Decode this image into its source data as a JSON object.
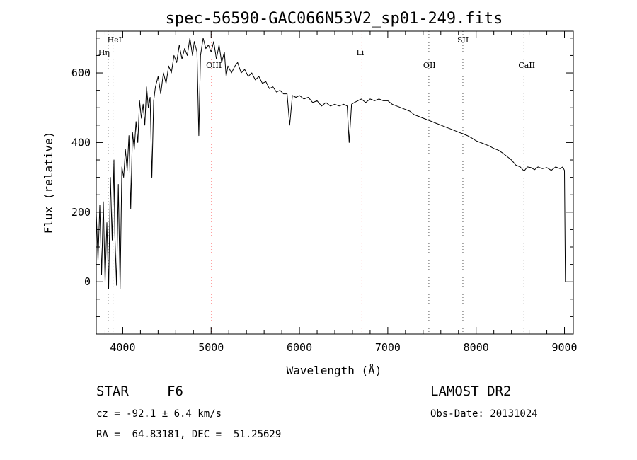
{
  "chart_data": {
    "type": "line",
    "title": "spec-56590-GAC066N53V2_sp01-249.fits",
    "xlabel": "Wavelength (Å)",
    "ylabel": "Flux (relative)",
    "xlim": [
      3700,
      9100
    ],
    "ylim": [
      -150,
      720
    ],
    "xticks": [
      4000,
      5000,
      6000,
      7000,
      8000,
      9000
    ],
    "yticks": [
      0,
      200,
      400,
      600
    ],
    "grid": false,
    "spectral_lines": [
      {
        "label": "HeI",
        "x": 3889,
        "color": "#555555"
      },
      {
        "label": "Hη",
        "x": 3835,
        "color": "#555555"
      },
      {
        "label": "OIII",
        "x": 5007,
        "color": "#ff0000"
      },
      {
        "label": "Li",
        "x": 6708,
        "color": "#ff0000"
      },
      {
        "label": "OII",
        "x": 7465,
        "color": "#555555"
      },
      {
        "label": "SII",
        "x": 7850,
        "color": "#555555"
      },
      {
        "label": "CaII",
        "x": 8542,
        "color": "#555555"
      }
    ],
    "series": [
      {
        "values": [
          [
            3700,
            200
          ],
          [
            3720,
            60
          ],
          [
            3740,
            220
          ],
          [
            3760,
            20
          ],
          [
            3780,
            230
          ],
          [
            3800,
            0
          ],
          [
            3820,
            170
          ],
          [
            3840,
            -20
          ],
          [
            3860,
            300
          ],
          [
            3880,
            120
          ],
          [
            3900,
            350
          ],
          [
            3910,
            140
          ],
          [
            3930,
            -10
          ],
          [
            3950,
            280
          ],
          [
            3970,
            -20
          ],
          [
            3990,
            330
          ],
          [
            4010,
            300
          ],
          [
            4030,
            380
          ],
          [
            4050,
            320
          ],
          [
            4070,
            420
          ],
          [
            4090,
            210
          ],
          [
            4110,
            430
          ],
          [
            4130,
            380
          ],
          [
            4150,
            460
          ],
          [
            4170,
            400
          ],
          [
            4190,
            520
          ],
          [
            4210,
            470
          ],
          [
            4230,
            510
          ],
          [
            4250,
            450
          ],
          [
            4270,
            560
          ],
          [
            4290,
            500
          ],
          [
            4310,
            530
          ],
          [
            4330,
            300
          ],
          [
            4350,
            520
          ],
          [
            4370,
            560
          ],
          [
            4400,
            590
          ],
          [
            4430,
            540
          ],
          [
            4460,
            600
          ],
          [
            4490,
            570
          ],
          [
            4520,
            620
          ],
          [
            4550,
            600
          ],
          [
            4580,
            650
          ],
          [
            4610,
            630
          ],
          [
            4640,
            680
          ],
          [
            4670,
            640
          ],
          [
            4700,
            670
          ],
          [
            4730,
            650
          ],
          [
            4760,
            700
          ],
          [
            4790,
            650
          ],
          [
            4810,
            690
          ],
          [
            4840,
            660
          ],
          [
            4861,
            420
          ],
          [
            4880,
            650
          ],
          [
            4910,
            700
          ],
          [
            4940,
            670
          ],
          [
            4970,
            680
          ],
          [
            5000,
            660
          ],
          [
            5030,
            690
          ],
          [
            5060,
            640
          ],
          [
            5090,
            680
          ],
          [
            5120,
            630
          ],
          [
            5150,
            660
          ],
          [
            5170,
            590
          ],
          [
            5190,
            620
          ],
          [
            5230,
            600
          ],
          [
            5270,
            620
          ],
          [
            5300,
            630
          ],
          [
            5340,
            600
          ],
          [
            5380,
            610
          ],
          [
            5420,
            590
          ],
          [
            5460,
            600
          ],
          [
            5500,
            580
          ],
          [
            5540,
            590
          ],
          [
            5580,
            570
          ],
          [
            5620,
            575
          ],
          [
            5660,
            555
          ],
          [
            5700,
            560
          ],
          [
            5740,
            545
          ],
          [
            5780,
            550
          ],
          [
            5820,
            540
          ],
          [
            5860,
            540
          ],
          [
            5890,
            450
          ],
          [
            5920,
            535
          ],
          [
            5960,
            530
          ],
          [
            6000,
            535
          ],
          [
            6050,
            525
          ],
          [
            6100,
            530
          ],
          [
            6150,
            515
          ],
          [
            6200,
            520
          ],
          [
            6250,
            505
          ],
          [
            6300,
            515
          ],
          [
            6350,
            505
          ],
          [
            6400,
            510
          ],
          [
            6450,
            505
          ],
          [
            6500,
            510
          ],
          [
            6540,
            505
          ],
          [
            6563,
            400
          ],
          [
            6590,
            510
          ],
          [
            6620,
            515
          ],
          [
            6660,
            520
          ],
          [
            6700,
            525
          ],
          [
            6750,
            515
          ],
          [
            6800,
            525
          ],
          [
            6850,
            520
          ],
          [
            6900,
            525
          ],
          [
            6950,
            520
          ],
          [
            7000,
            520
          ],
          [
            7050,
            510
          ],
          [
            7100,
            505
          ],
          [
            7150,
            500
          ],
          [
            7200,
            495
          ],
          [
            7250,
            490
          ],
          [
            7300,
            480
          ],
          [
            7350,
            475
          ],
          [
            7400,
            470
          ],
          [
            7450,
            465
          ],
          [
            7500,
            460
          ],
          [
            7550,
            455
          ],
          [
            7600,
            450
          ],
          [
            7650,
            445
          ],
          [
            7700,
            440
          ],
          [
            7750,
            435
          ],
          [
            7800,
            430
          ],
          [
            7850,
            425
          ],
          [
            7900,
            420
          ],
          [
            7950,
            413
          ],
          [
            8000,
            405
          ],
          [
            8050,
            400
          ],
          [
            8100,
            395
          ],
          [
            8150,
            390
          ],
          [
            8200,
            383
          ],
          [
            8250,
            378
          ],
          [
            8300,
            370
          ],
          [
            8350,
            360
          ],
          [
            8400,
            350
          ],
          [
            8450,
            335
          ],
          [
            8500,
            330
          ],
          [
            8542,
            318
          ],
          [
            8580,
            330
          ],
          [
            8620,
            328
          ],
          [
            8662,
            322
          ],
          [
            8700,
            330
          ],
          [
            8750,
            325
          ],
          [
            8800,
            328
          ],
          [
            8850,
            320
          ],
          [
            8900,
            330
          ],
          [
            8950,
            325
          ],
          [
            8980,
            330
          ],
          [
            9000,
            320
          ],
          [
            9010,
            0
          ]
        ]
      }
    ]
  },
  "info": {
    "class_label": "STAR",
    "subclass_label": "F6",
    "survey_label": "LAMOST DR2",
    "redshift_text": "cz = -92.1 ± 6.4 km/s",
    "obs_date_text": "Obs-Date: 20131024",
    "coord_text": "RA =  64.83181, DEC =  51.25629"
  }
}
